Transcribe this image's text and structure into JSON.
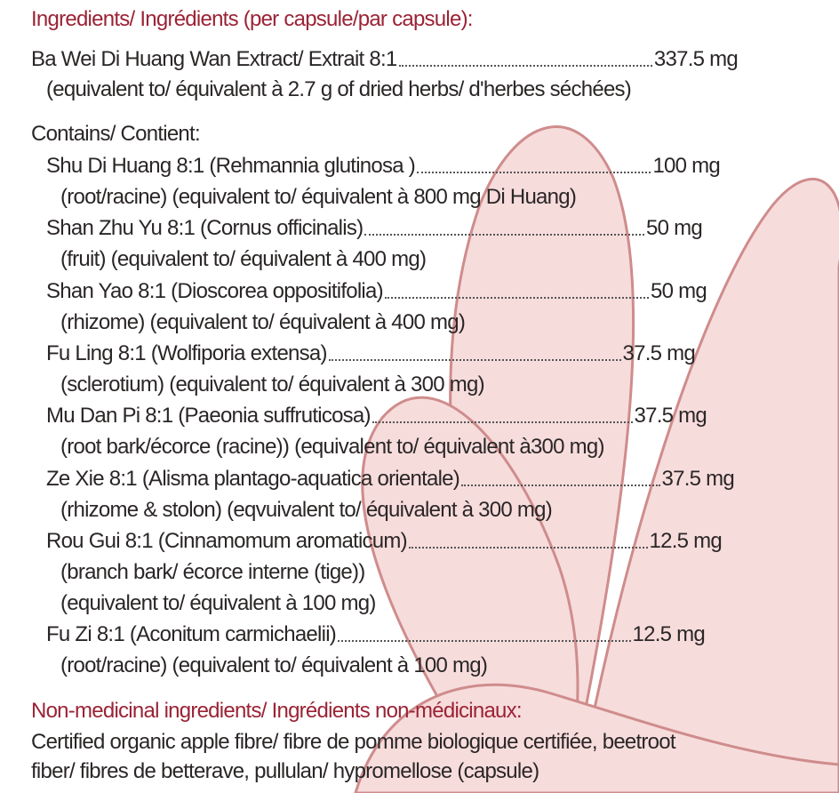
{
  "heading": "Ingredients/ Ingrédients (per capsule/par capsule):",
  "main": {
    "name": "Ba Wei Di Huang Wan Extract/ Extrait  8:1",
    "amount": "337.5 mg",
    "note": "(equivalent to/ équivalent à 2.7 g of dried herbs/ d'herbes séchées)"
  },
  "contains_heading": "Contains/ Contient:",
  "items": [
    {
      "name": "Shu Di Huang 8:1 (Rehmannia glutinosa )",
      "amount": "100 mg",
      "notes": [
        "(root/racine) (equivalent to/ équivalent à 800 mg Di Huang)"
      ]
    },
    {
      "name": "Shan Zhu Yu 8:1 (Cornus officinalis)",
      "amount": "50 mg",
      "notes": [
        "(fruit) (equivalent to/ équivalent à 400 mg)"
      ]
    },
    {
      "name": "Shan Yao 8:1 (Dioscorea oppositifolia)",
      "amount": "50 mg",
      "notes": [
        "(rhizome) (equivalent to/ équivalent à 400 mg)"
      ]
    },
    {
      "name": "Fu Ling 8:1 (Wolfiporia extensa)",
      "amount": "37.5 mg",
      "notes": [
        "(sclerotium) (equivalent to/ équivalent à 300 mg)"
      ]
    },
    {
      "name": "Mu Dan Pi 8:1 (Paeonia suffruticosa)",
      "amount": "37.5 mg",
      "notes": [
        "(root bark/écorce (racine)) (equivalent to/ équivalent à300 mg)"
      ]
    },
    {
      "name": "Ze Xie 8:1 (Alisma plantago-aquatica orientale)",
      "amount": "37.5 mg",
      "notes": [
        "(rhizome & stolon) (eqvuivalent to/ équivalent à 300 mg)"
      ]
    },
    {
      "name": "Rou Gui 8:1 (Cinnamomum aromaticum)",
      "amount": "12.5 mg",
      "notes": [
        "(branch bark/ écorce interne (tige))",
        "(equivalent to/ équivalent à 100 mg)"
      ]
    },
    {
      "name": "Fu Zi 8:1 (Aconitum carmichaelii)",
      "amount": "12.5 mg",
      "notes": [
        "(root/racine) (equivalent to/ équivalent à 100 mg)"
      ]
    }
  ],
  "nonmedicinal": {
    "heading": "Non-medicinal ingredients/ Ingrédients non-médicinaux:",
    "lines": [
      "Certified organic apple fibre/ fibre de pomme biologique certifiée, beetroot",
      "fiber/ fibres de betterave, pullulan/ hypromellose (capsule)"
    ]
  }
}
